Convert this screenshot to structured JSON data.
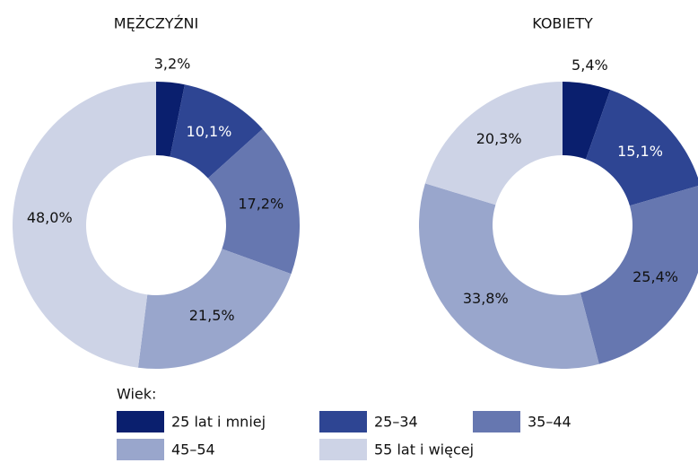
{
  "chart_data": [
    {
      "type": "donut",
      "title": "MĘŻCZYŹNI",
      "categories": [
        "25 lat i mniej",
        "25–34",
        "35–44",
        "45–54",
        "55 lat i więcej"
      ],
      "values": [
        3.2,
        10.1,
        17.2,
        21.5,
        48.0
      ],
      "value_labels": [
        "3,2%",
        "10,1%",
        "17,2%",
        "21,5%",
        "48,0%"
      ],
      "colors": [
        "#0a1f6e",
        "#2e4593",
        "#6677b0",
        "#99a6cc",
        "#cdd3e6"
      ]
    },
    {
      "type": "donut",
      "title": "KOBIETY",
      "categories": [
        "25 lat i mniej",
        "25–34",
        "35–44",
        "45–54",
        "55 lat i więcej"
      ],
      "values": [
        5.4,
        15.1,
        25.4,
        33.8,
        20.3
      ],
      "value_labels": [
        "5,4%",
        "15,1%",
        "25,4%",
        "33,8%",
        "20,3%"
      ],
      "colors": [
        "#0a1f6e",
        "#2e4593",
        "#6677b0",
        "#99a6cc",
        "#cdd3e6"
      ]
    }
  ],
  "legend": {
    "title": "Wiek:"
  }
}
